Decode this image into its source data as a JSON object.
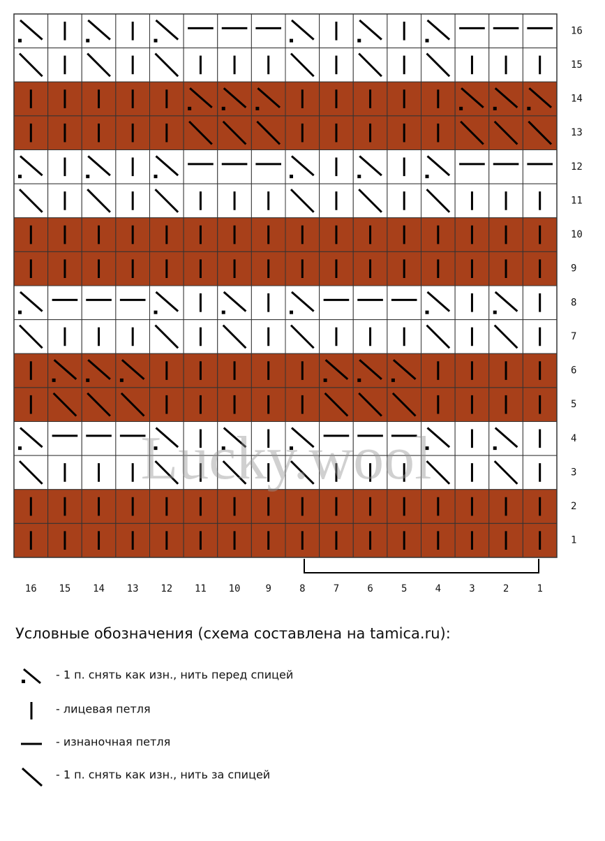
{
  "row_numbers": [
    "16",
    "15",
    "14",
    "13",
    "12",
    "11",
    "10",
    "9",
    "8",
    "7",
    "6",
    "5",
    "4",
    "3",
    "2",
    "1"
  ],
  "column_numbers": [
    "16",
    "15",
    "14",
    "13",
    "12",
    "11",
    "10",
    "9",
    "8",
    "7",
    "6",
    "5",
    "4",
    "3",
    "2",
    "1"
  ],
  "watermark": "Lucky.wool",
  "legend": {
    "title": "Условные обозначения (схема составлена на tamica.ru):",
    "items": [
      "- 1 п. снять как изн., нить перед спицей",
      "- лицевая петля",
      "- изнаночная петля",
      "- 1 п. снять как изн., нить за спицей"
    ]
  }
}
